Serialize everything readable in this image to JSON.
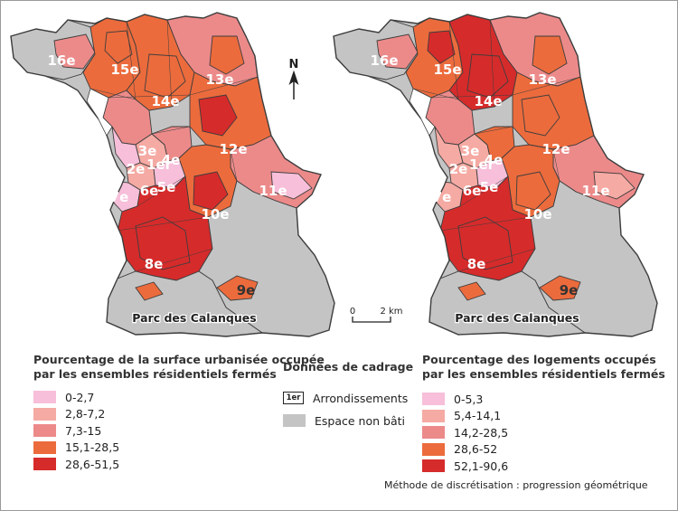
{
  "colors": {
    "c1": "#f7bfd9",
    "c2": "#f5aaa3",
    "c3": "#ec8a8a",
    "c4": "#ec6b3c",
    "c5": "#d62b2b",
    "unbuilt": "#c4c4c4",
    "border": "#3d3d3d"
  },
  "maps": [
    {
      "arrondissements": [
        "16e",
        "15e",
        "13e",
        "14e",
        "3e",
        "12e",
        "1er",
        "4e",
        "2e",
        "6e",
        "5e",
        "7e",
        "11e",
        "10e",
        "8e",
        "9e"
      ],
      "park_label": "Parc des Calanques",
      "legend": {
        "title_line1": "Pourcentage de la surface urbanisée occupée",
        "title_line2": "par les ensembles résidentiels fermés",
        "classes": [
          "0-2,7",
          "2,8-7,2",
          "7,3-15",
          "15,1-28,5",
          "28,6-51,5"
        ]
      }
    },
    {
      "arrondissements": [
        "16e",
        "15e",
        "13e",
        "14e",
        "3e",
        "12e",
        "1er",
        "4e",
        "2e",
        "6e",
        "5e",
        "7e",
        "11e",
        "10e",
        "8e",
        "9e"
      ],
      "park_label": "Parc des Calanques",
      "legend": {
        "title_line1": "Pourcentage des logements occupés",
        "title_line2": "par les ensembles résidentiels fermés",
        "classes": [
          "0-5,3",
          "5,4-14,1",
          "14,2-28,5",
          "28,6-52",
          "52,1-90,6"
        ]
      }
    }
  ],
  "north_label": "N",
  "scale": {
    "zero": "0",
    "dist": "2 km"
  },
  "framing": {
    "title": "Données de cadrage",
    "arr_box": "1er",
    "arr_label": "Arrondissements",
    "unbuilt_label": "Espace non bâti"
  },
  "method_note": "Méthode de discrétisation : progression géométrique"
}
